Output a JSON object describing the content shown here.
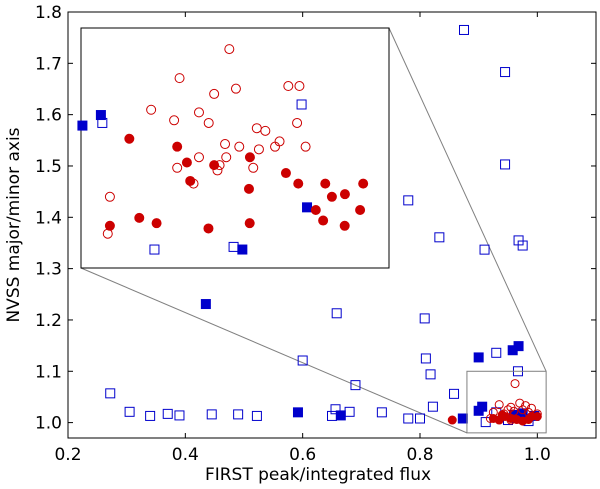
{
  "chart_data": {
    "type": "scatter",
    "title": "",
    "xlabel": "FIRST peak/integrated flux",
    "ylabel": "NVSS major/minor axis",
    "xlim": [
      0.2,
      1.1
    ],
    "ylim": [
      0.97,
      1.8
    ],
    "xticks": [
      0.2,
      0.4,
      0.6,
      0.8,
      1.0
    ],
    "yticks": [
      1.0,
      1.1,
      1.2,
      1.3,
      1.4,
      1.5,
      1.6,
      1.7,
      1.8
    ],
    "xtick_labels": [
      "0.2",
      "0.4",
      "0.6",
      "0.8",
      "1.0"
    ],
    "ytick_labels": [
      "1.0",
      "1.1",
      "1.2",
      "1.3",
      "1.4",
      "1.5",
      "1.6",
      "1.7",
      "1.8"
    ],
    "grid": false,
    "colors": {
      "blue": "#0000cc",
      "red": "#cc0000",
      "box": "#808080"
    },
    "series": [
      {
        "name": "open blue squares",
        "marker": "square",
        "filled": false,
        "color": "#0000cc",
        "points": [
          [
            0.875,
            1.765
          ],
          [
            0.945,
            1.683
          ],
          [
            0.945,
            1.503
          ],
          [
            0.78,
            1.433
          ],
          [
            0.968,
            1.355
          ],
          [
            0.975,
            1.345
          ],
          [
            0.91,
            1.337
          ],
          [
            0.833,
            1.361
          ],
          [
            0.658,
            1.213
          ],
          [
            0.808,
            1.203
          ],
          [
            0.6,
            1.121
          ],
          [
            0.81,
            1.125
          ],
          [
            0.93,
            1.136
          ],
          [
            0.818,
            1.094
          ],
          [
            0.69,
            1.073
          ],
          [
            0.858,
            1.056
          ],
          [
            0.967,
            1.1
          ],
          [
            0.272,
            1.057
          ],
          [
            0.305,
            1.021
          ],
          [
            0.34,
            1.013
          ],
          [
            0.37,
            1.017
          ],
          [
            0.39,
            1.014
          ],
          [
            0.445,
            1.016
          ],
          [
            0.49,
            1.016
          ],
          [
            0.522,
            1.013
          ],
          [
            0.656,
            1.026
          ],
          [
            0.65,
            1.013
          ],
          [
            0.68,
            1.021
          ],
          [
            0.735,
            1.02
          ],
          [
            0.78,
            1.008
          ],
          [
            0.8,
            1.008
          ],
          [
            0.822,
            1.031
          ],
          [
            0.912,
            1.001
          ],
          [
            0.93,
            1.02
          ],
          [
            0.95,
            1.005
          ],
          [
            0.965,
            1.009
          ],
          [
            0.985,
            1.003
          ]
        ]
      },
      {
        "name": "filled blue squares",
        "marker": "square",
        "filled": true,
        "color": "#0000cc",
        "points": [
          [
            0.435,
            1.231
          ],
          [
            0.592,
            1.02
          ],
          [
            0.665,
            1.014
          ],
          [
            0.873,
            1.008
          ],
          [
            0.9,
            1.127
          ],
          [
            0.958,
            1.141
          ],
          [
            0.968,
            1.149
          ],
          [
            0.906,
            1.031
          ],
          [
            0.9,
            1.023
          ],
          [
            0.96,
            1.015
          ],
          [
            0.995,
            1.013
          ],
          [
            0.975,
            1.018
          ]
        ]
      },
      {
        "name": "open red circles",
        "marker": "circle",
        "filled": false,
        "color": "#cc0000",
        "points": [
          [
            0.962,
            1.076
          ],
          [
            0.935,
            1.035
          ],
          [
            0.955,
            1.03
          ],
          [
            0.97,
            1.038
          ],
          [
            0.98,
            1.033
          ],
          [
            0.99,
            1.028
          ],
          [
            0.95,
            1.025
          ],
          [
            0.96,
            1.022
          ],
          [
            0.975,
            1.025
          ],
          [
            0.985,
            1.02
          ],
          [
            0.925,
            1.02
          ],
          [
            0.943,
            1.017
          ],
          [
            1.0,
            1.017
          ],
          [
            0.92,
            1.008
          ],
          [
            0.955,
            1.005
          ]
        ]
      },
      {
        "name": "filled red circles",
        "marker": "circle",
        "filled": true,
        "color": "#cc0000",
        "points": [
          [
            0.855,
            1.005
          ],
          [
            0.925,
            1.008
          ],
          [
            0.935,
            1.005
          ],
          [
            0.945,
            1.012
          ],
          [
            0.965,
            1.006
          ],
          [
            0.975,
            1.003
          ],
          [
            0.99,
            1.012
          ],
          [
            1.0,
            1.012
          ],
          [
            0.985,
            1.006
          ],
          [
            0.955,
            1.008
          ],
          [
            0.94,
            1.015
          ]
        ]
      }
    ],
    "inset": {
      "xlim": [
        0.88,
        1.01
      ],
      "ylim": [
        0.994,
        1.085
      ],
      "source_box": {
        "x": [
          0.88,
          1.015
        ],
        "y": [
          0.98,
          1.1
        ]
      },
      "series": [
        {
          "name": "open blue squares",
          "marker": "square",
          "filled": false,
          "color": "#0000cc",
          "points": [
            [
              0.889,
              1.049
            ],
            [
              0.911,
              1.001
            ],
            [
              0.9444,
              1.002
            ],
            [
              0.9731,
              1.056
            ]
          ]
        },
        {
          "name": "filled blue squares",
          "marker": "square",
          "filled": true,
          "color": "#0000cc",
          "points": [
            [
              0.8806,
              1.048
            ],
            [
              0.8884,
              1.052
            ],
            [
              0.9481,
              1.001
            ],
            [
              0.9754,
              1.017
            ]
          ]
        },
        {
          "name": "open red circles",
          "marker": "circle",
          "filled": false,
          "color": "#cc0000",
          "points": [
            [
              0.9426,
              1.077
            ],
            [
              0.9216,
              1.066
            ],
            [
              0.9362,
              1.06
            ],
            [
              0.9454,
              1.062
            ],
            [
              0.9675,
              1.063
            ],
            [
              0.9722,
              1.063
            ],
            [
              0.9298,
              1.053
            ],
            [
              0.9096,
              1.054
            ],
            [
              0.9193,
              1.05
            ],
            [
              0.9339,
              1.049
            ],
            [
              0.9542,
              1.047
            ],
            [
              0.9578,
              1.046
            ],
            [
              0.9712,
              1.049
            ],
            [
              0.9748,
              1.04
            ],
            [
              0.9638,
              1.042
            ],
            [
              0.9619,
              1.04
            ],
            [
              0.9551,
              1.039
            ],
            [
              0.9468,
              1.04
            ],
            [
              0.9408,
              1.041
            ],
            [
              0.9298,
              1.036
            ],
            [
              0.9385,
              1.033
            ],
            [
              0.9527,
              1.032
            ],
            [
              0.9275,
              1.026
            ],
            [
              0.9376,
              1.031
            ],
            [
              0.8922,
              1.021
            ],
            [
              0.8913,
              1.007
            ],
            [
              0.9413,
              1.036
            ],
            [
              0.9206,
              1.032
            ]
          ]
        },
        {
          "name": "filled red circles",
          "marker": "circle",
          "filled": true,
          "color": "#cc0000",
          "points": [
            [
              0.9004,
              1.043
            ],
            [
              0.8922,
              1.01
            ],
            [
              0.9046,
              1.013
            ],
            [
              0.9119,
              1.011
            ],
            [
              0.9206,
              1.04
            ],
            [
              0.9247,
              1.034
            ],
            [
              0.9261,
              1.027
            ],
            [
              0.9362,
              1.033
            ],
            [
              0.9513,
              1.036
            ],
            [
              0.9509,
              1.024
            ],
            [
              0.9665,
              1.03
            ],
            [
              0.9717,
              1.026
            ],
            [
              0.9831,
              1.026
            ],
            [
              0.9791,
              1.016
            ],
            [
              0.9822,
              1.012
            ],
            [
              0.9859,
              1.021
            ],
            [
              0.9914,
              1.022
            ],
            [
              0.9991,
              1.026
            ],
            [
              0.9913,
              1.01
            ],
            [
              0.9978,
              1.016
            ],
            [
              0.9338,
              1.009
            ],
            [
              0.9512,
              1.011
            ]
          ]
        }
      ]
    }
  }
}
